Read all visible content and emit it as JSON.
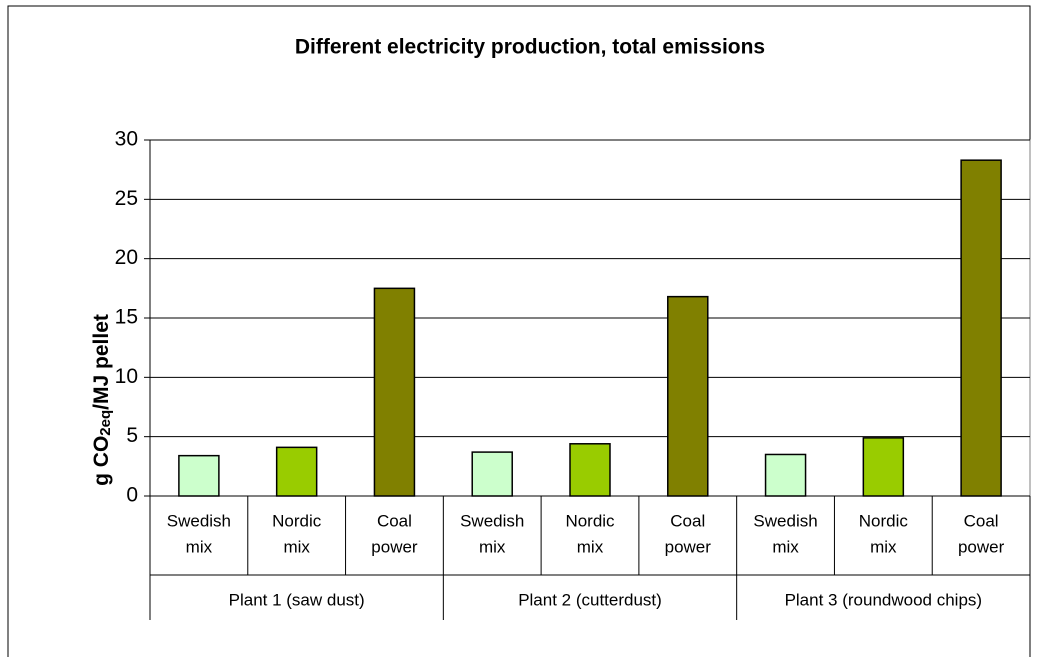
{
  "chart_data": {
    "type": "bar",
    "title": "Different electricity production, total emissions",
    "y_label": {
      "main": "g CO",
      "sub": "2eq",
      "rest": "/MJ pellet"
    },
    "categories": [
      "Plant 1 (saw dust)",
      "Plant 2 (cutterdust)",
      "Plant 3 (roundwood chips)"
    ],
    "series": [
      {
        "name": [
          "Swedish",
          "mix"
        ],
        "color": "#ccffcc",
        "values": [
          3.4,
          3.7,
          3.5
        ]
      },
      {
        "name": [
          "Nordic",
          "mix"
        ],
        "color": "#99cc00",
        "values": [
          4.1,
          4.4,
          4.9
        ]
      },
      {
        "name": [
          "Coal",
          "power"
        ],
        "color": "#808000",
        "values": [
          17.5,
          16.8,
          28.3
        ]
      }
    ],
    "ylim": [
      0,
      30
    ],
    "yticks": [
      0,
      5,
      10,
      15,
      20,
      25,
      30
    ],
    "grid": true
  }
}
